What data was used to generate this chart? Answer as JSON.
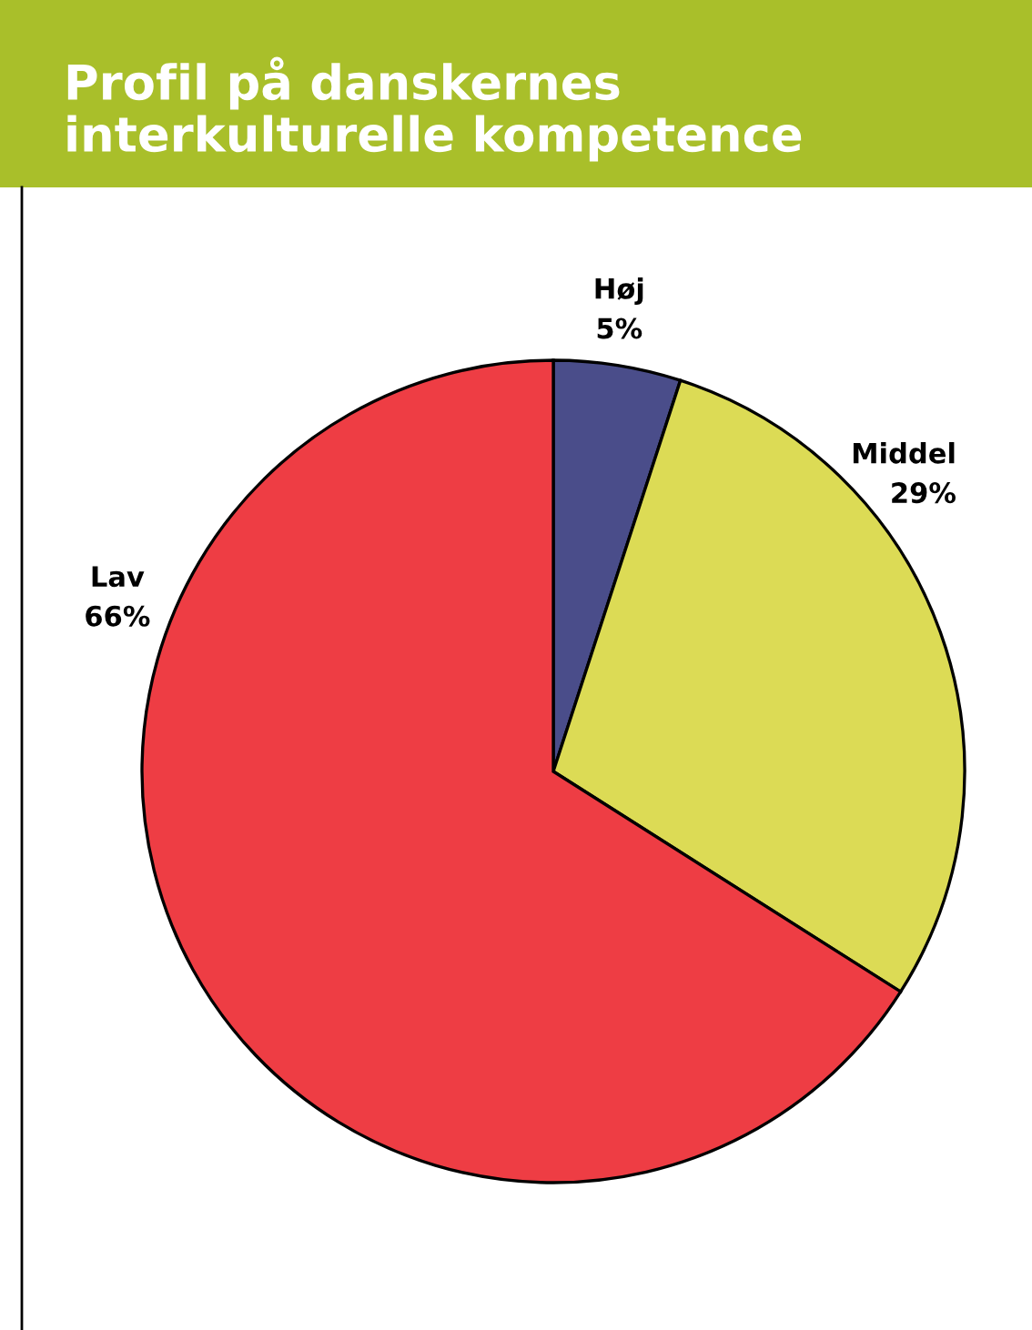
{
  "chart_data": {
    "type": "pie",
    "title": "Profil på danskernes\ninterkulturelle kompetence",
    "categories": [
      "Høj",
      "Middel",
      "Lav"
    ],
    "values": [
      5,
      29,
      66
    ],
    "value_labels": [
      "5%",
      "29%",
      "66%"
    ],
    "colors": [
      "#4a4d8a",
      "#dcdb55",
      "#ee3d44"
    ]
  }
}
